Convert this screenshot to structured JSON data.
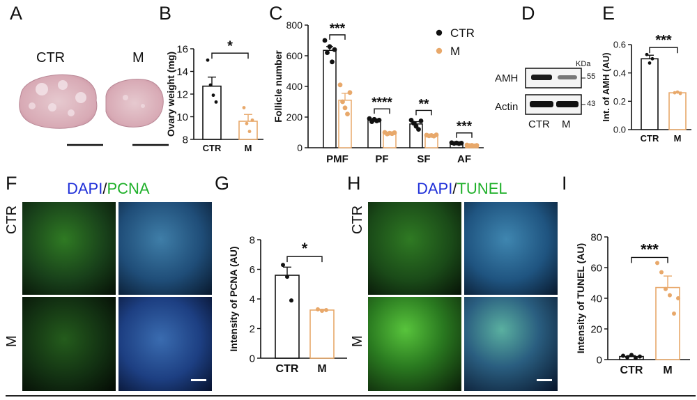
{
  "panels": {
    "A": {
      "letter": "A",
      "labels": [
        "CTR",
        "M"
      ]
    },
    "B": {
      "letter": "B"
    },
    "C": {
      "letter": "C"
    },
    "D": {
      "letter": "D",
      "unit": "KDa",
      "rows": [
        "AMH",
        "Actin"
      ],
      "markers": [
        "55",
        "43"
      ],
      "lanes": [
        "CTR",
        "M"
      ]
    },
    "E": {
      "letter": "E"
    },
    "F": {
      "letter": "F",
      "title_a": "DAPI",
      "title_sep": "/",
      "title_b": "PCNA",
      "rows": [
        "CTR",
        "M"
      ]
    },
    "G": {
      "letter": "G"
    },
    "H": {
      "letter": "H",
      "title_a": "DAPI",
      "title_sep": "/",
      "title_b": "TUNEL",
      "rows": [
        "CTR",
        "M"
      ]
    },
    "I": {
      "letter": "I"
    }
  },
  "colors": {
    "ctr": "#111111",
    "m": "#e8a86a",
    "dapi": "#1f2fd8",
    "green": "#1fb02a"
  },
  "chart_data": [
    {
      "id": "B",
      "type": "bar",
      "ylabel": "Ovary weight (mg)",
      "categories": [
        "CTR",
        "M"
      ],
      "values": [
        12.7,
        9.6
      ],
      "errors": [
        0.8,
        0.6
      ],
      "points": [
        [
          15.0,
          12.8,
          11.9,
          11.3
        ],
        [
          10.8,
          9.4,
          8.7,
          9.7
        ]
      ],
      "ylim": [
        8,
        16
      ],
      "yticks": [
        8,
        10,
        12,
        14,
        16
      ],
      "significance": [
        {
          "pair": [
            0,
            1
          ],
          "label": "*"
        }
      ]
    },
    {
      "id": "C",
      "type": "bar",
      "ylabel": "Follicle number",
      "categories": [
        "PMF",
        "PF",
        "SF",
        "AF"
      ],
      "series": [
        {
          "name": "CTR",
          "values": [
            635,
            180,
            155,
            30
          ],
          "errors": [
            25,
            8,
            15,
            3
          ],
          "points": [
            [
              700,
              620,
              660,
              560,
              640
            ],
            [
              190,
              170,
              185,
              175,
              180
            ],
            [
              180,
              160,
              140,
              120,
              175
            ],
            [
              33,
              28,
              31,
              27,
              30
            ]
          ]
        },
        {
          "name": "M",
          "values": [
            310,
            95,
            80,
            15
          ],
          "errors": [
            45,
            5,
            5,
            2
          ],
          "points": [
            [
              410,
              300,
              260,
              220,
              360
            ],
            [
              100,
              90,
              95,
              92,
              98
            ],
            [
              82,
              78,
              80,
              76,
              84
            ],
            [
              18,
              14,
              16,
              12,
              15
            ]
          ]
        }
      ],
      "ylim": [
        0,
        800
      ],
      "yticks": [
        0,
        200,
        400,
        600,
        800
      ],
      "significance": [
        "***",
        "****",
        "**",
        "***"
      ],
      "legend": "top-right"
    },
    {
      "id": "E",
      "type": "bar",
      "ylabel": "Int. of AMH (AU)",
      "categories": [
        "CTR",
        "M"
      ],
      "values": [
        0.5,
        0.26
      ],
      "errors": [
        0.025,
        0.005
      ],
      "points": [
        [
          0.53,
          0.47,
          0.5
        ],
        [
          0.26,
          0.265,
          0.255
        ]
      ],
      "ylim": [
        0,
        0.6
      ],
      "yticks": [
        0.0,
        0.2,
        0.4,
        0.6
      ],
      "significance": [
        {
          "pair": [
            0,
            1
          ],
          "label": "***"
        }
      ]
    },
    {
      "id": "G",
      "type": "bar",
      "ylabel": "Intensity of PCNA (AU)",
      "categories": [
        "CTR",
        "M"
      ],
      "values": [
        5.6,
        3.25
      ],
      "errors": [
        0.55,
        0.05
      ],
      "points": [
        [
          6.3,
          5.5,
          3.9
        ],
        [
          3.3,
          3.2,
          3.25
        ]
      ],
      "ylim": [
        0,
        8
      ],
      "yticks": [
        0,
        2,
        4,
        6,
        8
      ],
      "significance": [
        {
          "pair": [
            0,
            1
          ],
          "label": "*"
        }
      ]
    },
    {
      "id": "I",
      "type": "bar",
      "ylabel": "Intensity of TUNEL (AU)",
      "categories": [
        "CTR",
        "M"
      ],
      "values": [
        2,
        47
      ],
      "errors": [
        0.6,
        7.5
      ],
      "points": [
        [
          2.5,
          1.5,
          3.0,
          1.0,
          2.0
        ],
        [
          63,
          57,
          46,
          42,
          30,
          40
        ]
      ],
      "ylim": [
        0,
        80
      ],
      "yticks": [
        0,
        20,
        40,
        60,
        80
      ],
      "significance": [
        {
          "pair": [
            0,
            1
          ],
          "label": "***"
        }
      ]
    }
  ]
}
